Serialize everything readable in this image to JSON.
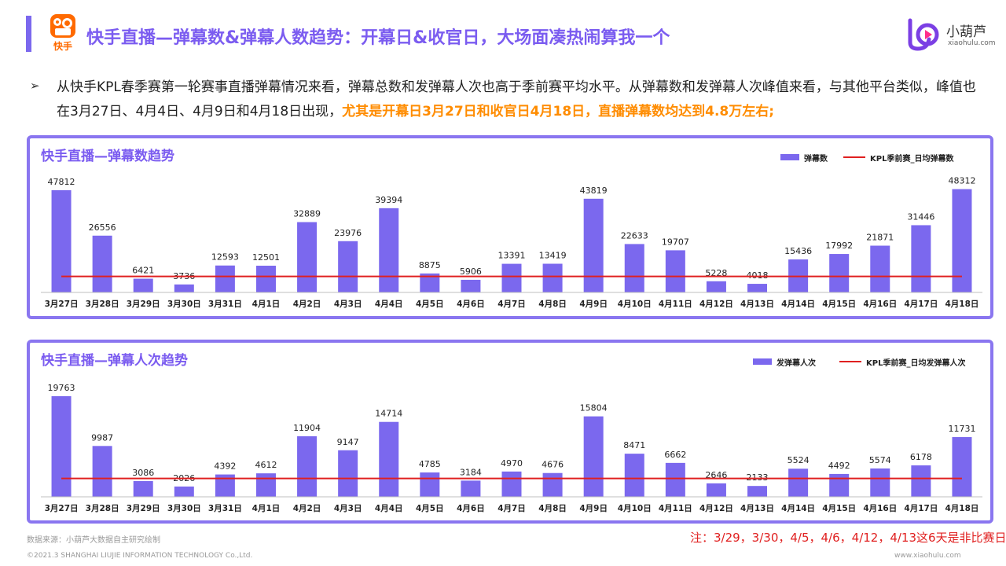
{
  "header": {
    "title": "快手直播—弹幕数&弹幕人数趋势：开幕日&收官日，大场面凑热闹算我一个",
    "brand_text": "快手",
    "xhl_name": "小葫芦",
    "xhl_domain": "xiaohulu.com"
  },
  "bullet": {
    "arrow": "➢",
    "text_plain": "从快手KPL春季赛第一轮赛事直播弹幕情况来看，弹幕总数和发弹幕人次也高于季前赛平均水平。从弹幕数和发弹幕人次峰值来看，与其他平台类似，峰值也在3月27日、4月4日、4月9日和4月18日出现，",
    "text_highlight": "尤其是开幕日3月27日和收官日4月18日，直播弹幕数均达到4.8万左右;"
  },
  "colors": {
    "bar": "#7b68ee",
    "line": "#e02020",
    "border": "#8a76f0",
    "title": "#7b5cf0",
    "highlight": "#ff8c00"
  },
  "chart_data": [
    {
      "type": "bar",
      "title": "快手直播—弹幕数趋势",
      "categories": [
        "3月27日",
        "3月28日",
        "3月29日",
        "3月30日",
        "3月31日",
        "4月1日",
        "4月2日",
        "4月3日",
        "4月4日",
        "4月5日",
        "4月6日",
        "4月7日",
        "4月8日",
        "4月9日",
        "4月10日",
        "4月11日",
        "4月12日",
        "4月13日",
        "4月14日",
        "4月15日",
        "4月16日",
        "4月17日",
        "4月18日"
      ],
      "series": [
        {
          "name": "弹幕数",
          "type": "bar",
          "values": [
            47812,
            26556,
            6421,
            3736,
            12593,
            12501,
            32889,
            23976,
            39394,
            8875,
            5906,
            13391,
            13419,
            43819,
            22633,
            19707,
            5228,
            4018,
            15436,
            17992,
            21871,
            31446,
            48312
          ]
        }
      ],
      "reference_line": {
        "name": "KPL季前赛_日均弹幕数",
        "value": 7500
      },
      "ylim": [
        0,
        50000
      ],
      "legend": "top-right",
      "grid": false
    },
    {
      "type": "bar",
      "title": "快手直播—弹幕人次趋势",
      "categories": [
        "3月27日",
        "3月28日",
        "3月29日",
        "3月30日",
        "3月31日",
        "4月1日",
        "4月2日",
        "4月3日",
        "4月4日",
        "4月5日",
        "4月6日",
        "4月7日",
        "4月8日",
        "4月9日",
        "4月10日",
        "4月11日",
        "4月12日",
        "4月13日",
        "4月14日",
        "4月15日",
        "4月16日",
        "4月17日",
        "4月18日"
      ],
      "series": [
        {
          "name": "发弹幕人次",
          "type": "bar",
          "values": [
            19763,
            9987,
            3086,
            2026,
            4392,
            4612,
            11904,
            9147,
            14714,
            4785,
            3184,
            4970,
            4676,
            15804,
            8471,
            6662,
            2646,
            2133,
            5524,
            4492,
            5574,
            6178,
            11731
          ]
        }
      ],
      "reference_line": {
        "name": "KPL季前赛_日均发弹幕人次",
        "value": 3600
      },
      "ylim": [
        0,
        21000
      ],
      "legend": "top-right",
      "grid": false
    }
  ],
  "footer": {
    "source": "数据来源：小葫芦大数据自主研究绘制",
    "copyright": "©2021.3 SHANGHAI LIUJIE INFORMATION  TECHNOLOGY Co.,Ltd.",
    "site": "www.xiaohulu.com",
    "note": "注：3/29，3/30，4/5，4/6，4/12，4/13这6天是非比赛日"
  }
}
